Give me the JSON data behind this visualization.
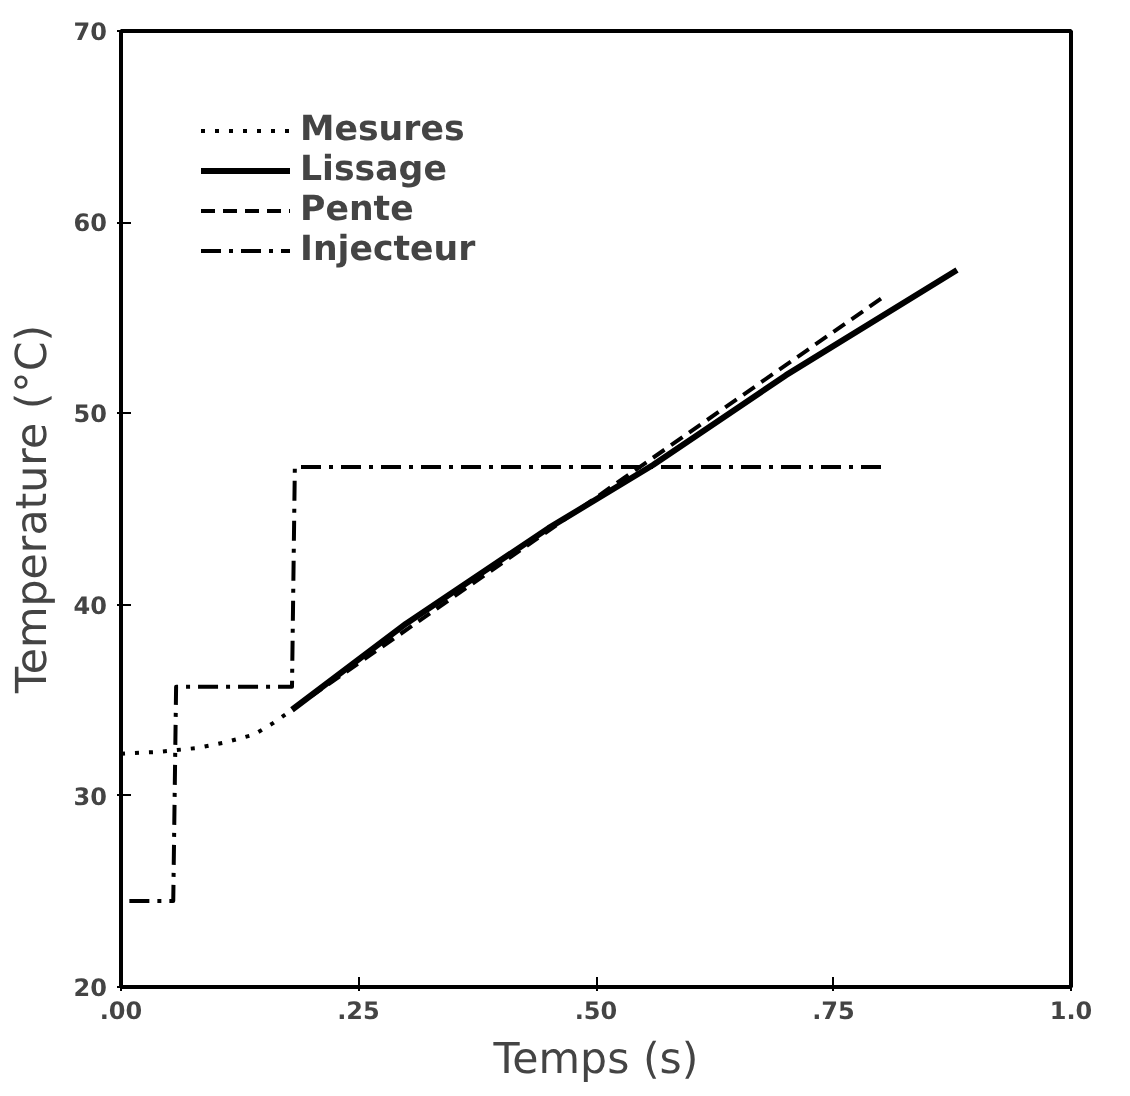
{
  "chart_data": {
    "type": "line",
    "xlabel": "Temps (s)",
    "ylabel": "Temperature (°C)",
    "xlim": [
      0,
      1
    ],
    "ylim": [
      20,
      70
    ],
    "xticks": [
      {
        "value": 0,
        "label": ".00"
      },
      {
        "value": 0.25,
        "label": ".25"
      },
      {
        "value": 0.5,
        "label": ".50"
      },
      {
        "value": 0.75,
        "label": ".75"
      },
      {
        "value": 1,
        "label": "1.0"
      }
    ],
    "yticks": [
      20,
      30,
      40,
      50,
      60,
      70
    ],
    "grid": false,
    "legend": "top left",
    "series": [
      {
        "name": "Mesures",
        "color": "#000000",
        "line_style": "dotted",
        "x": [
          0,
          0.04,
          0.08,
          0.11,
          0.14,
          0.16,
          0.18
        ],
        "values": [
          32.2,
          32.3,
          32.5,
          32.8,
          33.2,
          33.8,
          34.5
        ]
      },
      {
        "name": "Lissage",
        "color": "#000000",
        "line_style": "solid",
        "x": [
          0.18,
          0.3,
          0.45,
          0.56,
          0.7,
          0.88
        ],
        "values": [
          34.5,
          39.0,
          44.0,
          47.3,
          52.0,
          57.5
        ]
      },
      {
        "name": "Pente",
        "color": "#000000",
        "line_style": "dashed",
        "x": [
          0.8,
          0.2
        ],
        "values": [
          56.0,
          35.2
        ]
      },
      {
        "name": "Injecteur",
        "color": "#000000",
        "line_style": "dashdot",
        "x": [
          0.8,
          0.183,
          0.18,
          0.058,
          0.055,
          0
        ],
        "values": [
          47.2,
          47.2,
          35.7,
          35.7,
          24.5,
          24.5
        ]
      }
    ]
  }
}
